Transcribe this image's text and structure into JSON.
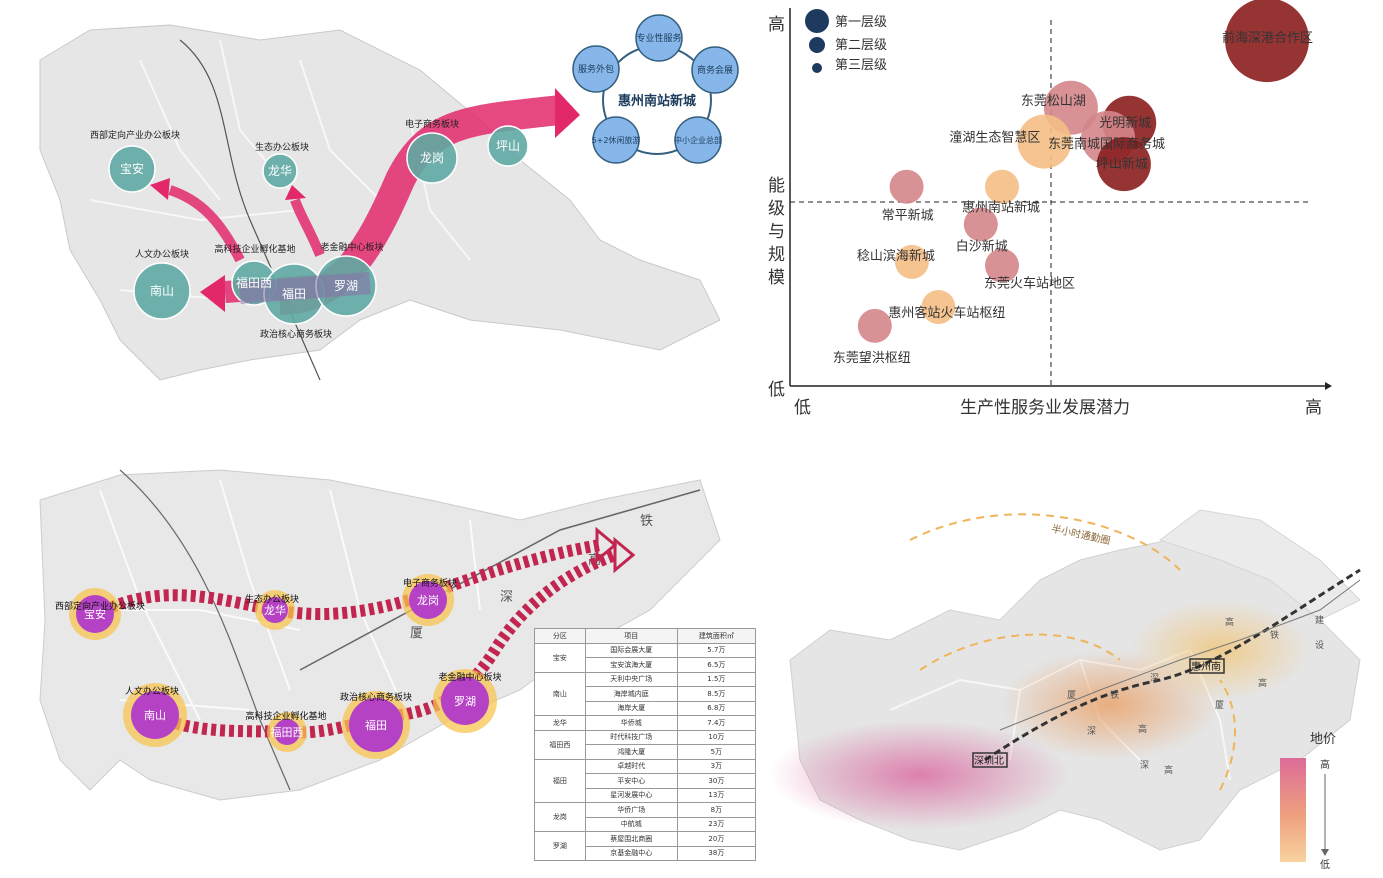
{
  "colors": {
    "teal": "#5fa8a3",
    "magenta": "#e2286b",
    "blue_node": "#87b7ea",
    "dark_red": "#8b1e1e",
    "red": "#a93232",
    "pink": "#d4868a",
    "peach": "#f4be84",
    "halo": "#f7c652",
    "purple": "#b542c4"
  },
  "p1": {
    "hub_title": "惠州南站新城",
    "hub_nodes": [
      "专业性服务",
      "商务会展",
      "中小企业总部",
      "5+2休闲旅游",
      "服务外包"
    ],
    "nodes": {
      "baoan": "宝安",
      "longhua": "龙华",
      "longgang": "龙岗",
      "pingshan": "坪山",
      "nanshan": "南山",
      "futianxi": "福田西",
      "futian": "福田",
      "luohu": "罗湖"
    },
    "labels": {
      "west": "西部定向产业办公板块",
      "eco": "生态办公板块",
      "ecom": "电子商务板块",
      "human": "人文办公板块",
      "hitech": "高科技企业孵化基地",
      "oldfin": "老金融中心板块",
      "gov": "政治核心商务板块"
    }
  },
  "p2": {
    "legend": [
      "第一层级",
      "第二层级",
      "第三层级"
    ],
    "y_high": "高",
    "y_low": "低",
    "y_title_chars": [
      "能",
      "级",
      "与",
      "规",
      "模"
    ],
    "x_low": "低",
    "x_high": "高",
    "x_title": "生产性服务业发展潜力",
    "points": [
      {
        "name": "前海深港合作区",
        "x": 9.0,
        "y": 9.2,
        "size": 1,
        "color": "dark_red"
      },
      {
        "name": "东莞松山湖",
        "x": 5.3,
        "y": 7.4,
        "size": 2,
        "color": "pink"
      },
      {
        "name": "光明新城",
        "x": 6.4,
        "y": 7.0,
        "size": 2,
        "color": "dark_red"
      },
      {
        "name": "东莞南城国际商务城",
        "x": 6.0,
        "y": 6.6,
        "size": 2,
        "color": "pink"
      },
      {
        "name": "潼湖生态智慧区",
        "x": 4.8,
        "y": 6.5,
        "size": 2,
        "color": "peach"
      },
      {
        "name": "坪山新城",
        "x": 6.3,
        "y": 5.9,
        "size": 2,
        "color": "dark_red"
      },
      {
        "name": "常平新城",
        "x": 2.2,
        "y": 5.3,
        "size": 3,
        "color": "pink"
      },
      {
        "name": "惠州南站新城",
        "x": 4.0,
        "y": 5.3,
        "size": 3,
        "color": "peach"
      },
      {
        "name": "白沙新城",
        "x": 3.6,
        "y": 4.3,
        "size": 3,
        "color": "pink"
      },
      {
        "name": "稔山滨海新城",
        "x": 2.3,
        "y": 3.3,
        "size": 3,
        "color": "peach"
      },
      {
        "name": "东莞火车站地区",
        "x": 4.0,
        "y": 3.2,
        "size": 3,
        "color": "pink"
      },
      {
        "name": "惠州客站火车站枢纽",
        "x": 2.8,
        "y": 2.1,
        "size": 3,
        "color": "peach"
      },
      {
        "name": "东莞望洪枢纽",
        "x": 1.6,
        "y": 1.6,
        "size": 3,
        "color": "pink"
      }
    ]
  },
  "p3": {
    "nodes": {
      "baoan": "宝安",
      "longhua": "龙华",
      "longgang": "龙岗",
      "nanshan": "南山",
      "futianxi": "福田西",
      "futian": "福田",
      "luohu": "罗湖"
    },
    "labels": {
      "west": "西部定向产业办公板块",
      "eco": "生态办公板块",
      "ecom": "电子商务板块",
      "human": "人文办公板块",
      "hitech": "高科技企业孵化基地",
      "gov": "政治核心商务板块",
      "oldfin": "老金融中心板块"
    },
    "rail_chars": [
      "厦",
      "深",
      "高",
      "铁"
    ],
    "table_headers": [
      "分区",
      "项目",
      "建筑面积㎡"
    ],
    "table_rows": [
      {
        "zone": "宝安",
        "items": [
          [
            "国际会展大厦",
            "5.7万"
          ],
          [
            "宝安滨海大厦",
            "6.5万"
          ]
        ]
      },
      {
        "zone": "南山",
        "items": [
          [
            "天利中央广场",
            "1.5万"
          ],
          [
            "海岸城内庭",
            "8.5万"
          ],
          [
            "海岸大厦",
            "6.8万"
          ]
        ]
      },
      {
        "zone": "龙华",
        "items": [
          [
            "华侨城",
            "7.4万"
          ]
        ]
      },
      {
        "zone": "福田西",
        "items": [
          [
            "时代科技广场",
            "10万"
          ],
          [
            "鸿隆大厦",
            "5万"
          ]
        ]
      },
      {
        "zone": "福田",
        "items": [
          [
            "卓越时代",
            "3万"
          ],
          [
            "平安中心",
            "30万"
          ],
          [
            "星河发展中心",
            "13万"
          ]
        ]
      },
      {
        "zone": "龙岗",
        "items": [
          [
            "华侨广场",
            "8万"
          ],
          [
            "中航城",
            "23万"
          ]
        ]
      },
      {
        "zone": "罗湖",
        "items": [
          [
            "蔡屋围北商圈",
            "20万"
          ],
          [
            "京基金融中心",
            "38万"
          ]
        ]
      }
    ]
  },
  "p4": {
    "half_hour": "半小时通勤圈",
    "rail_chars": [
      "厦",
      "深",
      "高",
      "铁",
      "建",
      "设"
    ],
    "rail_chars2": [
      "深",
      "高",
      "厦",
      "深",
      "高",
      "铁",
      "高"
    ],
    "stations": {
      "shenzhen_north": "深圳北",
      "huizhou_south": "惠州南"
    },
    "legend_title": "地价",
    "legend_high": "高",
    "legend_low": "低"
  }
}
